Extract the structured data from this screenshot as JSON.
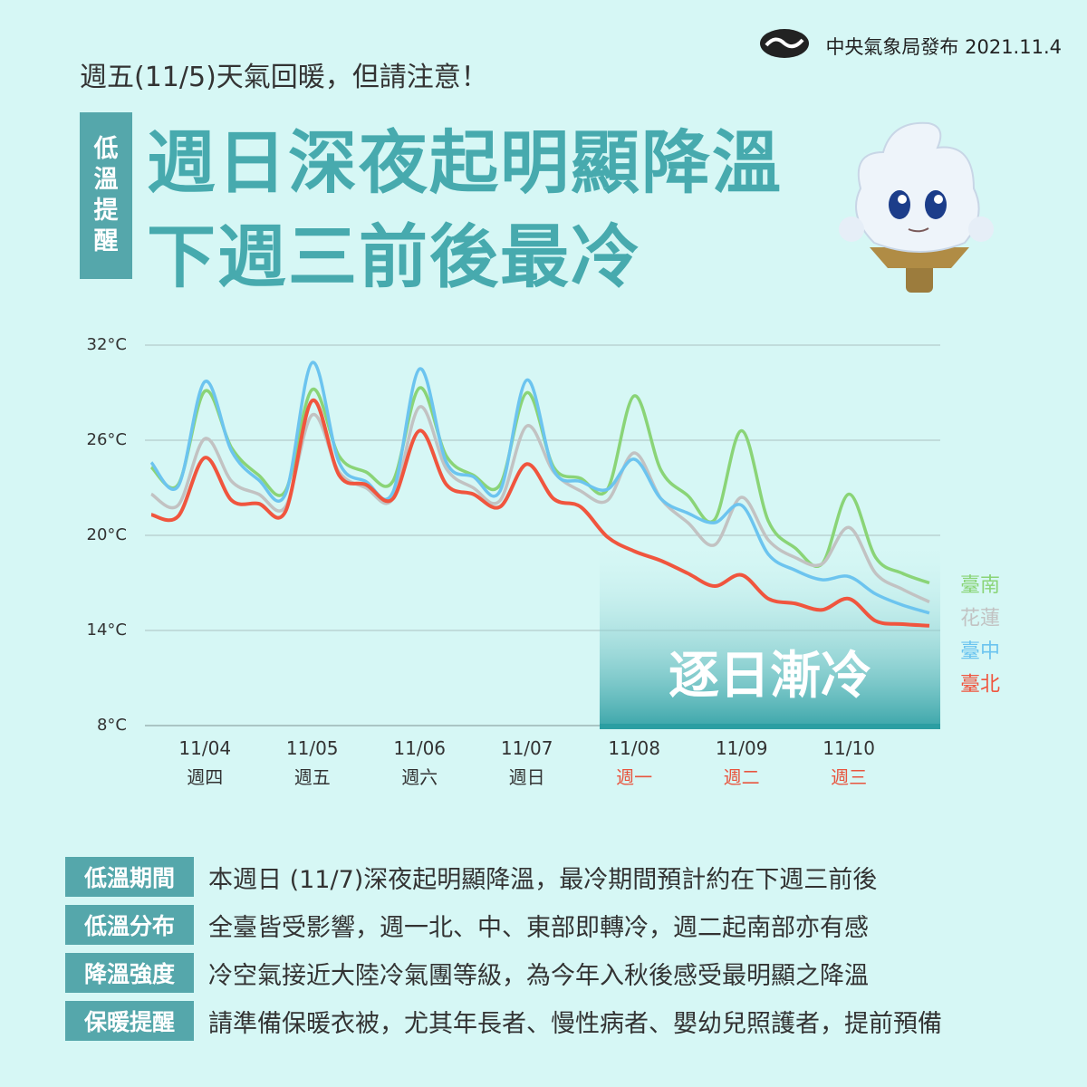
{
  "header": {
    "publisher": "中央氣象局發布 2021.11.4",
    "kicker": "週五(11/5)天氣回暖，但請注意！",
    "tag": "低溫提醒",
    "headline": [
      "週日深夜起明顯降溫",
      "下週三前後最冷"
    ]
  },
  "chart_data": {
    "type": "line",
    "annotation": "逐日漸冷",
    "categories": [
      null,
      null,
      "11/04",
      null,
      null,
      null,
      "11/05",
      null,
      null,
      null,
      "11/06",
      null,
      null,
      null,
      "11/07",
      null,
      null,
      null,
      "11/08",
      null,
      null,
      null,
      "11/09",
      null,
      null,
      null,
      "11/10",
      null,
      null,
      null
    ],
    "x_sublabels": [
      null,
      null,
      "週四",
      null,
      null,
      null,
      "週五",
      null,
      null,
      null,
      "週六",
      null,
      null,
      null,
      "週日",
      null,
      null,
      null,
      "週一",
      null,
      null,
      null,
      "週二",
      null,
      null,
      null,
      "週三",
      null,
      null,
      null
    ],
    "x_sublabel_colors": [
      null,
      null,
      "#333333",
      null,
      null,
      null,
      "#333333",
      null,
      null,
      null,
      "#333333",
      null,
      null,
      null,
      "#333333",
      null,
      null,
      null,
      "#e8553f",
      null,
      null,
      null,
      "#e8553f",
      null,
      null,
      null,
      "#e8553f",
      null,
      null,
      null
    ],
    "ylim": [
      8,
      32
    ],
    "yticks": [
      {
        "value": 8,
        "label": "8°C"
      },
      {
        "value": 14,
        "label": "14°C"
      },
      {
        "value": 20,
        "label": "20°C"
      },
      {
        "value": 26,
        "label": "26°C"
      },
      {
        "value": 32,
        "label": "32°C"
      }
    ],
    "grid": true,
    "series": [
      {
        "name": "臺南",
        "color": "#8ad477",
        "values": [
          24.3,
          23.2,
          29.1,
          25.5,
          23.8,
          22.8,
          29.2,
          25.0,
          24.0,
          23.4,
          29.3,
          25.0,
          23.8,
          23.2,
          29.0,
          24.3,
          23.6,
          22.9,
          28.8,
          24.1,
          22.5,
          21.0,
          26.6,
          20.9,
          19.2,
          18.2,
          22.6,
          18.6,
          17.6,
          17.0
        ]
      },
      {
        "name": "花蓮",
        "color": "#c2c2c2",
        "values": [
          22.6,
          21.9,
          26.1,
          23.4,
          22.6,
          21.8,
          27.6,
          24.0,
          23.0,
          22.3,
          28.1,
          24.2,
          23.0,
          22.2,
          26.9,
          24.0,
          22.8,
          22.2,
          25.2,
          22.3,
          20.8,
          19.4,
          22.4,
          19.7,
          18.6,
          18.2,
          20.5,
          17.6,
          16.6,
          15.8
        ]
      },
      {
        "name": "臺中",
        "color": "#6cc4ef",
        "values": [
          24.6,
          23.1,
          29.7,
          25.3,
          23.5,
          22.6,
          30.9,
          24.6,
          23.4,
          22.7,
          30.5,
          24.6,
          23.7,
          22.8,
          29.8,
          24.1,
          23.4,
          22.9,
          24.8,
          22.3,
          21.4,
          20.8,
          21.9,
          18.8,
          17.8,
          17.2,
          17.4,
          16.3,
          15.6,
          15.1
        ]
      },
      {
        "name": "臺北",
        "color": "#f0553e",
        "values": [
          21.3,
          21.2,
          24.9,
          22.2,
          22.0,
          21.5,
          28.5,
          23.8,
          23.2,
          22.3,
          26.6,
          23.2,
          22.6,
          21.8,
          24.5,
          22.3,
          21.8,
          19.9,
          19.0,
          18.4,
          17.6,
          16.8,
          17.5,
          16.0,
          15.7,
          15.3,
          16.0,
          14.6,
          14.4,
          14.3
        ]
      }
    ]
  },
  "table": {
    "rows": [
      [
        "低溫期間",
        "本週日 (11/7)深夜起明顯降溫，最冷期間預計約在下週三前後"
      ],
      [
        "低溫分布",
        "全臺皆受影響，週一北、中、東部即轉冷，週二起南部亦有感"
      ],
      [
        "降溫強度",
        "冷空氣接近大陸冷氣團等級，為今年入秋後感受最明顯之降溫"
      ],
      [
        "保暖提醒",
        "請準備保暖衣被，尤其年長者、慢性病者、嬰幼兒照護者，提前預備"
      ]
    ]
  }
}
